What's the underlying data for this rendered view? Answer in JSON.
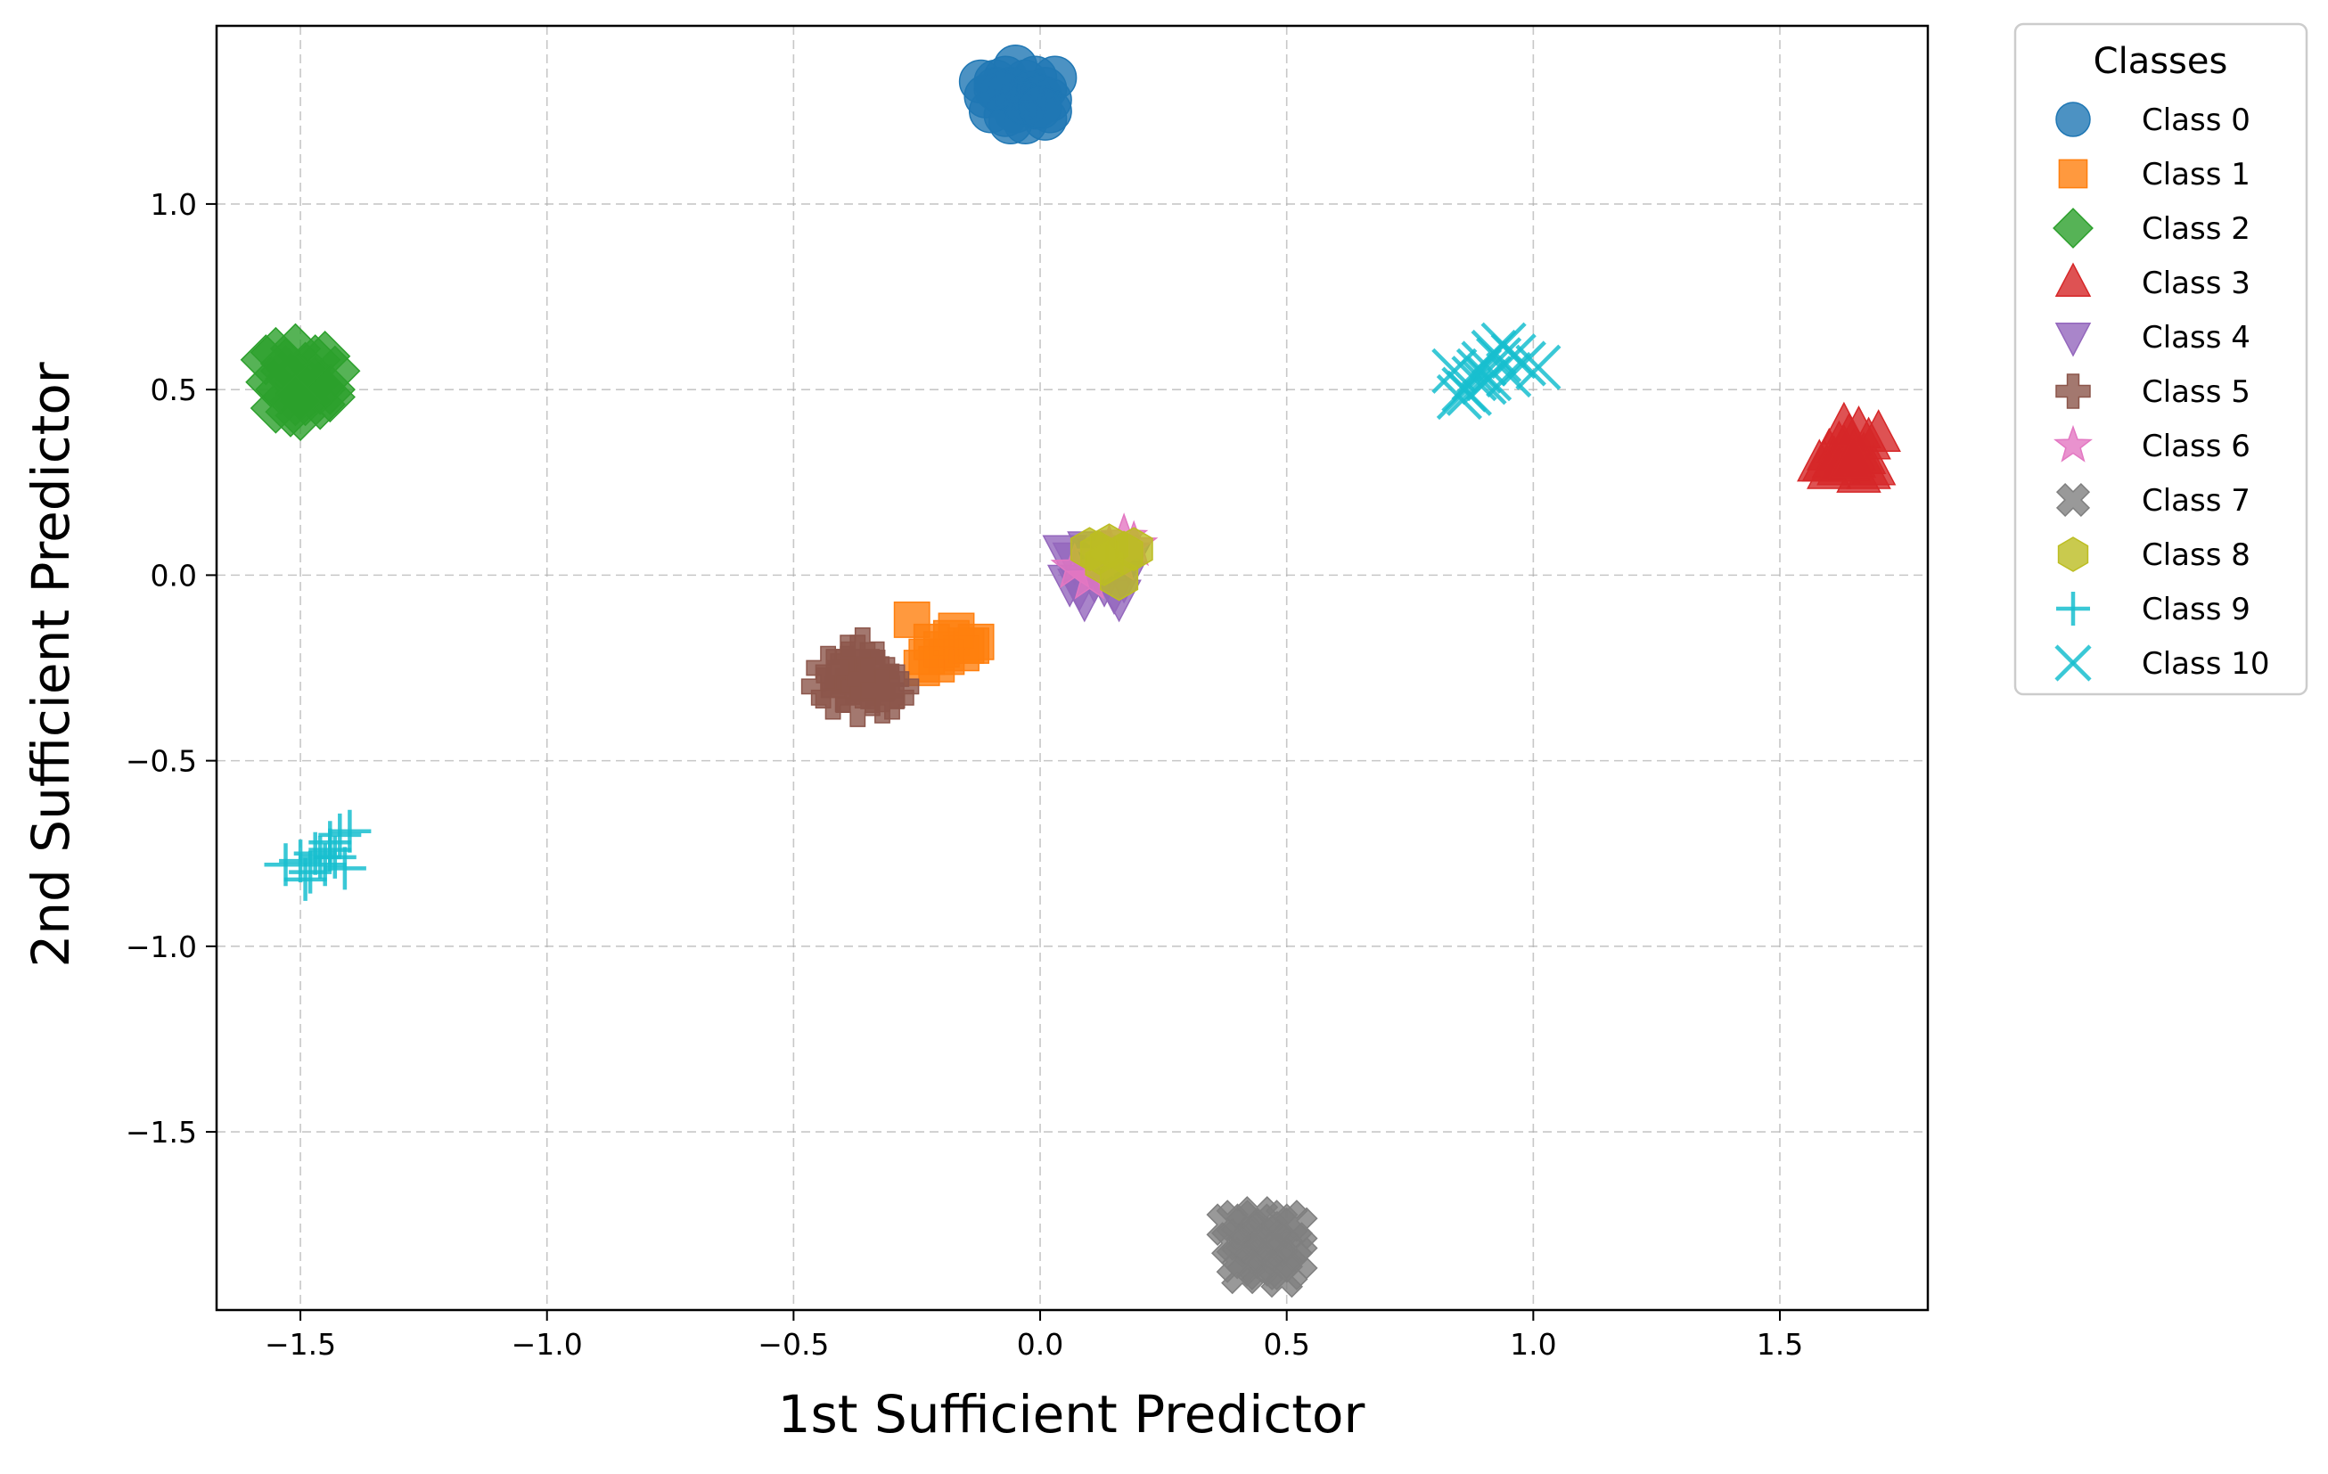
{
  "chart_data": {
    "type": "scatter",
    "title": "",
    "xlabel": "1st Sufficient Predictor",
    "ylabel": "2nd Sufficient Predictor",
    "xlim": [
      -1.67,
      1.8
    ],
    "ylim": [
      -1.98,
      1.48
    ],
    "xticks": [
      -1.5,
      -1.0,
      -0.5,
      0.0,
      0.5,
      1.0,
      1.5
    ],
    "xtick_labels": [
      "−1.5",
      "−1.0",
      "−0.5",
      "0.0",
      "0.5",
      "1.0",
      "1.5"
    ],
    "yticks": [
      1.0,
      0.5,
      0.0,
      -0.5,
      -1.0,
      -1.5
    ],
    "ytick_labels": [
      "1.0",
      "0.5",
      "0.0",
      "−0.5",
      "−1.0",
      "−1.5"
    ],
    "grid": true,
    "legend": {
      "title": "Classes",
      "placement": "outside-right-top"
    },
    "series": [
      {
        "name": "Class 0",
        "marker": "circle",
        "color": "#1f77b4",
        "x": [
          -0.12,
          -0.09,
          -0.07,
          -0.05,
          -0.03,
          -0.01,
          0.01,
          0.03,
          -0.11,
          -0.08,
          -0.06,
          -0.04,
          -0.02,
          0.0,
          0.02,
          -0.1,
          -0.07,
          -0.05,
          -0.03,
          -0.01,
          0.01,
          0.02,
          -0.06,
          -0.03,
          0.0,
          -0.09
        ],
        "y": [
          1.33,
          1.33,
          1.34,
          1.37,
          1.33,
          1.34,
          1.31,
          1.34,
          1.29,
          1.3,
          1.31,
          1.28,
          1.3,
          1.29,
          1.28,
          1.25,
          1.24,
          1.25,
          1.22,
          1.26,
          1.23,
          1.25,
          1.22,
          1.27,
          1.26,
          1.31
        ]
      },
      {
        "name": "Class 1",
        "marker": "square",
        "color": "#ff7f0e",
        "x": [
          -0.26,
          -0.23,
          -0.2,
          -0.18,
          -0.15,
          -0.13,
          -0.24,
          -0.21,
          -0.19,
          -0.16,
          -0.14,
          -0.22,
          -0.17
        ],
        "y": [
          -0.12,
          -0.22,
          -0.2,
          -0.17,
          -0.19,
          -0.18,
          -0.25,
          -0.24,
          -0.22,
          -0.21,
          -0.19,
          -0.18,
          -0.15
        ]
      },
      {
        "name": "Class 2",
        "marker": "diamond",
        "color": "#2ca02c",
        "x": [
          -1.57,
          -1.55,
          -1.53,
          -1.51,
          -1.49,
          -1.47,
          -1.45,
          -1.43,
          -1.56,
          -1.54,
          -1.52,
          -1.5,
          -1.48,
          -1.46,
          -1.44,
          -1.55,
          -1.52,
          -1.49,
          -1.46,
          -1.53,
          -1.5,
          -1.47,
          -1.44,
          -1.51
        ],
        "y": [
          0.58,
          0.6,
          0.57,
          0.61,
          0.56,
          0.58,
          0.59,
          0.55,
          0.52,
          0.5,
          0.53,
          0.49,
          0.51,
          0.5,
          0.48,
          0.45,
          0.44,
          0.47,
          0.46,
          0.55,
          0.43,
          0.52,
          0.5,
          0.47
        ]
      },
      {
        "name": "Class 3",
        "marker": "triangle-up",
        "color": "#d62728",
        "x": [
          1.58,
          1.6,
          1.62,
          1.64,
          1.66,
          1.68,
          1.7,
          1.59,
          1.61,
          1.63,
          1.65,
          1.67,
          1.69,
          1.6,
          1.62,
          1.64,
          1.66,
          1.68,
          1.63,
          1.65
        ],
        "y": [
          0.3,
          0.33,
          0.35,
          0.37,
          0.39,
          0.36,
          0.38,
          0.3,
          0.31,
          0.34,
          0.33,
          0.32,
          0.29,
          0.28,
          0.29,
          0.3,
          0.27,
          0.28,
          0.4,
          0.31
        ]
      },
      {
        "name": "Class 4",
        "marker": "triangle-down",
        "color": "#9467bd",
        "x": [
          0.05,
          0.07,
          0.1,
          0.12,
          0.14,
          0.16,
          0.18,
          0.06,
          0.08,
          0.11,
          0.13,
          0.15,
          0.17,
          0.09,
          0.16
        ],
        "y": [
          0.06,
          0.04,
          0.07,
          0.05,
          0.03,
          0.06,
          0.04,
          -0.02,
          -0.03,
          -0.01,
          -0.02,
          -0.04,
          -0.01,
          -0.06,
          -0.06
        ]
      },
      {
        "name": "Class 5",
        "marker": "plus-filled",
        "color": "#8c564b",
        "x": [
          -0.44,
          -0.41,
          -0.39,
          -0.37,
          -0.35,
          -0.33,
          -0.31,
          -0.29,
          -0.42,
          -0.4,
          -0.38,
          -0.36,
          -0.34,
          -0.32,
          -0.3,
          -0.39,
          -0.36,
          -0.33,
          -0.37,
          -0.35,
          -0.32,
          -0.43
        ],
        "y": [
          -0.3,
          -0.27,
          -0.25,
          -0.22,
          -0.24,
          -0.26,
          -0.28,
          -0.3,
          -0.33,
          -0.31,
          -0.29,
          -0.3,
          -0.32,
          -0.34,
          -0.33,
          -0.22,
          -0.2,
          -0.26,
          -0.35,
          -0.28,
          -0.31,
          -0.25
        ]
      },
      {
        "name": "Class 6",
        "marker": "star",
        "color": "#e377c2",
        "x": [
          0.07,
          0.12,
          0.14,
          0.17,
          0.19,
          0.1,
          0.16
        ],
        "y": [
          0.02,
          0.05,
          0.07,
          0.1,
          0.08,
          -0.01,
          0.04
        ]
      },
      {
        "name": "Class 7",
        "marker": "x-filled",
        "color": "#7f7f7f",
        "x": [
          0.38,
          0.4,
          0.42,
          0.44,
          0.46,
          0.48,
          0.5,
          0.52,
          0.39,
          0.41,
          0.43,
          0.45,
          0.47,
          0.49,
          0.51,
          0.4,
          0.42,
          0.44,
          0.46,
          0.48,
          0.5,
          0.52,
          0.41,
          0.45,
          0.49
        ],
        "y": [
          -1.75,
          -1.74,
          -1.76,
          -1.73,
          -1.77,
          -1.75,
          -1.74,
          -1.76,
          -1.8,
          -1.79,
          -1.81,
          -1.78,
          -1.8,
          -1.82,
          -1.8,
          -1.85,
          -1.84,
          -1.86,
          -1.83,
          -1.85,
          -1.87,
          -1.84,
          -1.88,
          -1.87,
          -1.89
        ]
      },
      {
        "name": "Class 8",
        "marker": "hexagon",
        "color": "#bcbd22",
        "x": [
          0.1,
          0.12,
          0.14,
          0.17,
          0.19,
          0.13,
          0.16
        ],
        "y": [
          0.07,
          0.06,
          0.08,
          0.06,
          0.07,
          0.03,
          -0.01
        ]
      },
      {
        "name": "Class 9",
        "marker": "plus",
        "color": "#17becf",
        "x": [
          -1.53,
          -1.5,
          -1.48,
          -1.46,
          -1.44,
          -1.42,
          -1.4,
          -1.49,
          -1.45,
          -1.43,
          -1.41,
          -1.47,
          -1.44
        ],
        "y": [
          -0.78,
          -0.77,
          -0.8,
          -0.76,
          -0.74,
          -0.7,
          -0.69,
          -0.82,
          -0.78,
          -0.76,
          -0.79,
          -0.75,
          -0.72
        ]
      },
      {
        "name": "Class 10",
        "marker": "x",
        "color": "#17becf",
        "x": [
          0.84,
          0.86,
          0.88,
          0.9,
          0.92,
          0.94,
          0.96,
          0.87,
          0.89,
          0.91,
          0.93,
          0.95,
          0.98,
          1.01,
          0.85,
          0.9
        ],
        "y": [
          0.55,
          0.5,
          0.53,
          0.57,
          0.6,
          0.62,
          0.59,
          0.49,
          0.55,
          0.53,
          0.58,
          0.54,
          0.57,
          0.56,
          0.48,
          0.52
        ]
      }
    ]
  }
}
